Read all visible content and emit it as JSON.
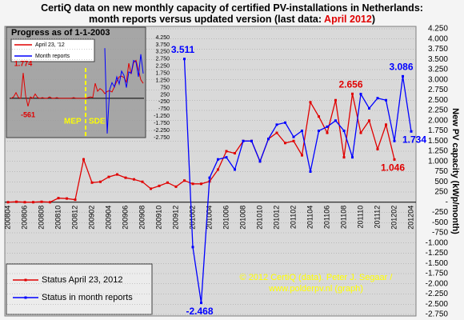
{
  "chart_data": [
    {
      "type": "line",
      "title": [
        "CertiQ data on new monthly capacity of certified PV-installations in Netherlands:",
        "month reports versus updated version (last data: ",
        "April 2012",
        ")"
      ],
      "y_label": "New PV capacity (kWp/month)",
      "annotations": [
        "© 2012 CertiQ (data). Peter J. Segaar /",
        "www.polderpv.nl (graph)"
      ],
      "categories": [
        "200804",
        null,
        "200806",
        null,
        "200808",
        null,
        "200810",
        null,
        "200812",
        null,
        "200902",
        null,
        "200904",
        null,
        "200906",
        null,
        "200908",
        null,
        "200910",
        null,
        "200912",
        null,
        "201002",
        null,
        "201004",
        null,
        "201006",
        null,
        "201008",
        null,
        "201010",
        null,
        "201012",
        null,
        "201102",
        null,
        "201104",
        null,
        "201106",
        null,
        "201108",
        null,
        "201110",
        null,
        "201112",
        null,
        "201202",
        null,
        "201204"
      ],
      "series": [
        {
          "name": "Status April 23, 2012",
          "color": "#e00000",
          "values": [
            0,
            10,
            0,
            0,
            10,
            0,
            100,
            90,
            60,
            1050,
            480,
            500,
            620,
            680,
            600,
            560,
            500,
            330,
            400,
            480,
            380,
            530,
            450,
            450,
            510,
            800,
            1250,
            1200,
            1500,
            1500,
            1000,
            1550,
            1700,
            1450,
            1500,
            1150,
            2450,
            2100,
            1700,
            2500,
            1100,
            2656,
            1700,
            2000,
            1300,
            1900,
            1046,
            null,
            null
          ],
          "value_labels": [
            null,
            null,
            null,
            null,
            null,
            null,
            null,
            null,
            null,
            null,
            null,
            null,
            null,
            null,
            null,
            null,
            null,
            null,
            null,
            null,
            null,
            null,
            null,
            null,
            null,
            null,
            null,
            null,
            null,
            null,
            null,
            null,
            null,
            null,
            null,
            null,
            null,
            null,
            null,
            null,
            null,
            "2.656",
            null,
            null,
            null,
            null,
            "1.046",
            null,
            null
          ]
        },
        {
          "name": "Status in month reports",
          "color": "#0000ff",
          "values": [
            null,
            null,
            null,
            null,
            null,
            null,
            null,
            null,
            null,
            null,
            null,
            null,
            null,
            null,
            null,
            null,
            null,
            null,
            null,
            null,
            null,
            3511,
            -1100,
            -2468,
            600,
            1050,
            1100,
            800,
            1500,
            1500,
            1000,
            1550,
            1900,
            1950,
            1600,
            1750,
            750,
            1750,
            1850,
            2000,
            1750,
            1100,
            2650,
            2300,
            2550,
            2500,
            1500,
            3086,
            1734
          ],
          "value_labels": [
            null,
            null,
            null,
            null,
            null,
            null,
            null,
            null,
            null,
            null,
            null,
            null,
            null,
            null,
            null,
            null,
            null,
            null,
            null,
            null,
            null,
            "3.511",
            null,
            "-2.468",
            null,
            null,
            null,
            null,
            null,
            null,
            null,
            null,
            null,
            null,
            null,
            null,
            null,
            null,
            null,
            null,
            null,
            null,
            null,
            null,
            null,
            null,
            null,
            "3.086",
            "1.734"
          ]
        }
      ],
      "ylim": [
        -2750,
        4250
      ],
      "yticks": [
        {
          "value": 4250,
          "label": "4.250"
        },
        {
          "value": 4000,
          "label": "4.000"
        },
        {
          "value": 3750,
          "label": "3.750"
        },
        {
          "value": 3500,
          "label": "3.500"
        },
        {
          "value": 3250,
          "label": "3.250"
        },
        {
          "value": 3000,
          "label": "3.000"
        },
        {
          "value": 2750,
          "label": "2.750"
        },
        {
          "value": 2500,
          "label": "2.500"
        },
        {
          "value": 2250,
          "label": "2.250"
        },
        {
          "value": 2000,
          "label": "2.000"
        },
        {
          "value": 1750,
          "label": "1.750"
        },
        {
          "value": 1500,
          "label": "1.500"
        },
        {
          "value": 1250,
          "label": "1.250"
        },
        {
          "value": 1000,
          "label": "1.000"
        },
        750,
        500,
        250,
        {
          "value": 0,
          "label": "-"
        },
        -250,
        -500,
        -750,
        {
          "value": -1000,
          "label": "-1.000"
        },
        {
          "value": -1250,
          "label": "-1.250"
        },
        {
          "value": -1500,
          "label": "-1.500"
        },
        {
          "value": -1750,
          "label": "-1.750"
        },
        {
          "value": -2000,
          "label": "-2.000"
        },
        {
          "value": -2250,
          "label": "-2.250"
        },
        {
          "value": -2500,
          "label": "-2.500"
        },
        {
          "value": -2750,
          "label": "-2.750"
        }
      ],
      "grid": true,
      "legend": "lower left"
    },
    {
      "type": "line",
      "title": "Progress as of 1-1-2003",
      "annotations": [
        "MEP",
        "SDE"
      ],
      "series": [
        {
          "name": "April 23, '12",
          "color": "#e00000",
          "values": [
            0,
            100,
            400,
            50,
            0,
            1774,
            200,
            -561,
            100,
            0,
            300,
            50,
            0,
            50,
            0,
            0,
            100,
            0,
            0,
            50,
            0,
            0,
            0,
            0,
            0,
            0,
            50,
            0,
            0,
            0,
            0,
            0,
            50,
            100,
            60,
            1050,
            500,
            680,
            560,
            330,
            480,
            530,
            450,
            800,
            1200,
            1500,
            1550,
            1450,
            1150,
            2450,
            1700,
            2500,
            2656,
            2000,
            1300,
            1046
          ],
          "value_labels": [
            null,
            null,
            null,
            null,
            null,
            "1.774",
            null,
            "-561",
            null,
            null,
            null,
            null,
            null,
            null,
            null,
            null,
            null,
            null,
            null,
            null,
            null,
            null,
            null,
            null,
            null,
            null,
            null,
            null,
            null,
            null,
            null,
            null,
            null,
            null,
            null,
            null,
            null,
            null,
            null,
            null,
            null,
            null,
            null,
            null,
            null,
            null,
            null,
            null,
            null,
            null,
            null,
            null,
            null,
            null,
            null,
            null
          ]
        },
        {
          "name": "Month reports",
          "color": "#0000ff",
          "values": [
            null,
            null,
            null,
            null,
            null,
            null,
            null,
            null,
            null,
            null,
            null,
            null,
            null,
            null,
            null,
            null,
            null,
            null,
            null,
            null,
            null,
            null,
            null,
            null,
            null,
            null,
            null,
            null,
            null,
            null,
            null,
            null,
            null,
            null,
            null,
            null,
            null,
            null,
            null,
            3511,
            -2468,
            600,
            1100,
            800,
            1500,
            1000,
            1900,
            1600,
            750,
            1850,
            1750,
            2650,
            2550,
            1500,
            3086,
            1734
          ]
        }
      ],
      "ylim": [
        -2750,
        4250
      ],
      "yticks": [
        {
          "value": 4250,
          "label": "4.250"
        },
        {
          "value": 3750,
          "label": "3.750"
        },
        {
          "value": 3250,
          "label": "3.250"
        },
        {
          "value": 2750,
          "label": "2.750"
        },
        {
          "value": 2250,
          "label": "2.250"
        },
        {
          "value": 1750,
          "label": "1.750"
        },
        {
          "value": 1250,
          "label": "1.250"
        },
        750,
        250,
        -250,
        -750,
        {
          "value": -1250,
          "label": "-1.250"
        },
        {
          "value": -1750,
          "label": "-1.750"
        },
        {
          "value": -2250,
          "label": "-2.250"
        },
        {
          "value": -2750,
          "label": "-2.750"
        }
      ],
      "legend": "upper left"
    }
  ]
}
